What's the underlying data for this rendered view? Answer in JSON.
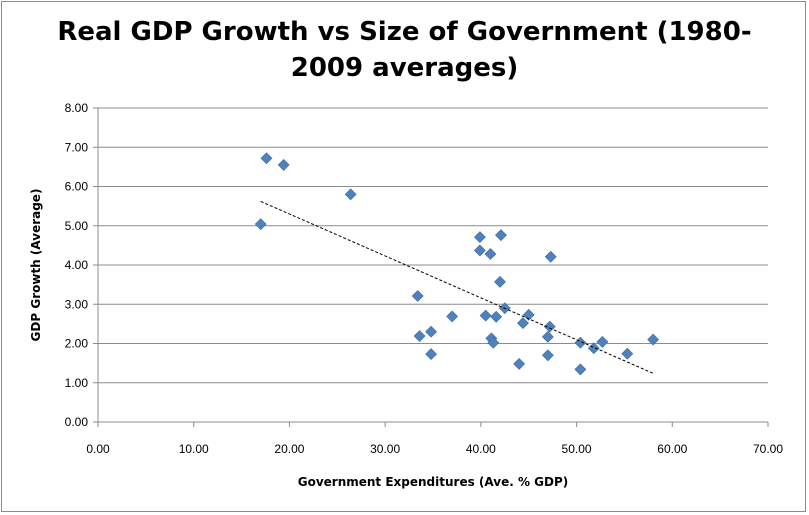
{
  "chart_data": {
    "type": "scatter",
    "title_line1": "Real GDP Growth vs Size of Government (1980-",
    "title_line2": "2009 averages)",
    "xlabel": "Government Expenditures (Ave. % GDP)",
    "ylabel": "GDP Growth (Average)",
    "xlim": [
      0,
      70
    ],
    "ylim": [
      0,
      8
    ],
    "x_ticks": [
      "0.00",
      "10.00",
      "20.00",
      "30.00",
      "40.00",
      "50.00",
      "60.00",
      "70.00"
    ],
    "y_ticks": [
      "0.00",
      "1.00",
      "2.00",
      "3.00",
      "4.00",
      "5.00",
      "6.00",
      "7.00",
      "8.00"
    ],
    "grid": "horizontal",
    "marker_color": "#4f81bd",
    "trendline": {
      "type": "linear",
      "x_start": 17.0,
      "y_start": 5.62,
      "x_end": 58.0,
      "y_end": 1.24
    },
    "points": [
      {
        "x": 17.0,
        "y": 5.04
      },
      {
        "x": 17.6,
        "y": 6.72
      },
      {
        "x": 19.4,
        "y": 6.55
      },
      {
        "x": 26.4,
        "y": 5.8
      },
      {
        "x": 33.4,
        "y": 3.21
      },
      {
        "x": 33.6,
        "y": 2.19
      },
      {
        "x": 34.8,
        "y": 2.3
      },
      {
        "x": 34.8,
        "y": 1.73
      },
      {
        "x": 37.0,
        "y": 2.69
      },
      {
        "x": 39.9,
        "y": 4.71
      },
      {
        "x": 39.9,
        "y": 4.37
      },
      {
        "x": 40.5,
        "y": 2.71
      },
      {
        "x": 41.0,
        "y": 4.28
      },
      {
        "x": 41.1,
        "y": 2.13
      },
      {
        "x": 41.3,
        "y": 2.02
      },
      {
        "x": 41.6,
        "y": 2.68
      },
      {
        "x": 42.0,
        "y": 3.57
      },
      {
        "x": 42.1,
        "y": 4.76
      },
      {
        "x": 42.5,
        "y": 2.9
      },
      {
        "x": 44.0,
        "y": 1.48
      },
      {
        "x": 44.4,
        "y": 2.52
      },
      {
        "x": 45.0,
        "y": 2.73
      },
      {
        "x": 47.0,
        "y": 1.7
      },
      {
        "x": 47.0,
        "y": 2.17
      },
      {
        "x": 47.2,
        "y": 2.43
      },
      {
        "x": 47.3,
        "y": 4.21
      },
      {
        "x": 50.4,
        "y": 2.02
      },
      {
        "x": 50.4,
        "y": 1.34
      },
      {
        "x": 51.8,
        "y": 1.88
      },
      {
        "x": 52.7,
        "y": 2.04
      },
      {
        "x": 55.3,
        "y": 1.74
      },
      {
        "x": 58.0,
        "y": 2.1
      }
    ]
  }
}
